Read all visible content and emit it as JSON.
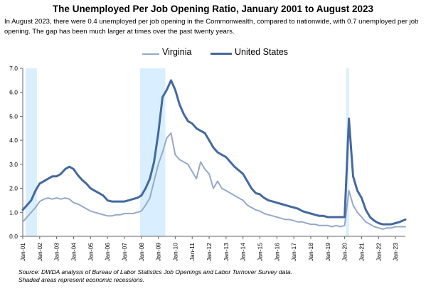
{
  "header": {
    "title": "The Unemployed Per Job Opening Ratio, January 2001 to August 2023",
    "subtitle": "In August 2023, there were 0.4 unemployed per job opening in the Commonwealth, compared to nationwide, with 0.7 unemployed per job opening. The gap has been much larger at times over the past twenty years."
  },
  "footer": {
    "source_line1": "Source: DWDA analysis of Bureau of Labor Statistics Job Openings and Labor Turnover Survey data.",
    "source_line2": "Shaded areas represent economic recessions."
  },
  "chart_data": {
    "type": "line",
    "title": "The Unemployed Per Job Opening Ratio, January 2001 to August 2023",
    "xlabel": "",
    "ylabel": "",
    "ylim": [
      0,
      7
    ],
    "yticks": [
      "0.0",
      "1.0",
      "2.0",
      "3.0",
      "4.0",
      "5.0",
      "6.0",
      "7.0"
    ],
    "xticks": [
      "Jan-01",
      "Jan-02",
      "Jan-03",
      "Jan-04",
      "Jan-05",
      "Jan-06",
      "Jan-07",
      "Jan-08",
      "Jan-09",
      "Jan-10",
      "Jan-11",
      "Jan-12",
      "Jan-13",
      "Jan-14",
      "Jan-15",
      "Jan-16",
      "Jan-17",
      "Jan-18",
      "Jan-19",
      "Jan-20",
      "Jan-21",
      "Jan-22",
      "Jan-23"
    ],
    "xrange": [
      "2001-01",
      "2023-08"
    ],
    "legend_position": "top",
    "grid": false,
    "recessions": [
      {
        "start": "2001-03",
        "end": "2001-11"
      },
      {
        "start": "2007-12",
        "end": "2009-06"
      },
      {
        "start": "2020-02",
        "end": "2020-04"
      }
    ],
    "series": [
      {
        "name": "Virginia",
        "color": "#95a9c9",
        "points": [
          [
            "2001-01",
            0.6
          ],
          [
            "2001-04",
            0.8
          ],
          [
            "2001-07",
            1.0
          ],
          [
            "2001-10",
            1.2
          ],
          [
            "2002-01",
            1.45
          ],
          [
            "2002-04",
            1.55
          ],
          [
            "2002-07",
            1.6
          ],
          [
            "2002-10",
            1.55
          ],
          [
            "2003-01",
            1.6
          ],
          [
            "2003-04",
            1.55
          ],
          [
            "2003-07",
            1.6
          ],
          [
            "2003-10",
            1.55
          ],
          [
            "2004-01",
            1.4
          ],
          [
            "2004-04",
            1.35
          ],
          [
            "2004-07",
            1.25
          ],
          [
            "2004-10",
            1.15
          ],
          [
            "2005-01",
            1.05
          ],
          [
            "2005-04",
            1.0
          ],
          [
            "2005-07",
            0.95
          ],
          [
            "2005-10",
            0.9
          ],
          [
            "2006-01",
            0.85
          ],
          [
            "2006-04",
            0.85
          ],
          [
            "2006-07",
            0.9
          ],
          [
            "2006-10",
            0.9
          ],
          [
            "2007-01",
            0.95
          ],
          [
            "2007-04",
            0.95
          ],
          [
            "2007-07",
            0.95
          ],
          [
            "2007-10",
            1.0
          ],
          [
            "2008-01",
            1.05
          ],
          [
            "2008-04",
            1.3
          ],
          [
            "2008-07",
            1.6
          ],
          [
            "2008-10",
            2.3
          ],
          [
            "2009-01",
            3.0
          ],
          [
            "2009-04",
            3.5
          ],
          [
            "2009-07",
            4.1
          ],
          [
            "2009-10",
            4.3
          ],
          [
            "2010-01",
            3.4
          ],
          [
            "2010-04",
            3.2
          ],
          [
            "2010-07",
            3.1
          ],
          [
            "2010-10",
            3.0
          ],
          [
            "2011-01",
            2.7
          ],
          [
            "2011-04",
            2.4
          ],
          [
            "2011-07",
            3.1
          ],
          [
            "2011-10",
            2.8
          ],
          [
            "2012-01",
            2.6
          ],
          [
            "2012-04",
            2.0
          ],
          [
            "2012-07",
            2.3
          ],
          [
            "2012-10",
            2.0
          ],
          [
            "2013-01",
            1.9
          ],
          [
            "2013-04",
            1.8
          ],
          [
            "2013-07",
            1.7
          ],
          [
            "2013-10",
            1.6
          ],
          [
            "2014-01",
            1.5
          ],
          [
            "2014-04",
            1.3
          ],
          [
            "2014-07",
            1.2
          ],
          [
            "2014-10",
            1.1
          ],
          [
            "2015-01",
            1.05
          ],
          [
            "2015-04",
            0.95
          ],
          [
            "2015-07",
            0.9
          ],
          [
            "2015-10",
            0.85
          ],
          [
            "2016-01",
            0.8
          ],
          [
            "2016-04",
            0.75
          ],
          [
            "2016-07",
            0.7
          ],
          [
            "2016-10",
            0.7
          ],
          [
            "2017-01",
            0.65
          ],
          [
            "2017-04",
            0.6
          ],
          [
            "2017-07",
            0.6
          ],
          [
            "2017-10",
            0.55
          ],
          [
            "2018-01",
            0.5
          ],
          [
            "2018-04",
            0.5
          ],
          [
            "2018-07",
            0.45
          ],
          [
            "2018-10",
            0.45
          ],
          [
            "2019-01",
            0.45
          ],
          [
            "2019-04",
            0.4
          ],
          [
            "2019-07",
            0.45
          ],
          [
            "2019-10",
            0.4
          ],
          [
            "2020-01",
            0.45
          ],
          [
            "2020-04",
            1.9
          ],
          [
            "2020-07",
            1.3
          ],
          [
            "2020-10",
            1.0
          ],
          [
            "2021-01",
            0.8
          ],
          [
            "2021-04",
            0.6
          ],
          [
            "2021-07",
            0.5
          ],
          [
            "2021-10",
            0.4
          ],
          [
            "2022-01",
            0.35
          ],
          [
            "2022-04",
            0.3
          ],
          [
            "2022-07",
            0.35
          ],
          [
            "2022-10",
            0.35
          ],
          [
            "2023-01",
            0.4
          ],
          [
            "2023-04",
            0.4
          ],
          [
            "2023-08",
            0.4
          ]
        ]
      },
      {
        "name": "United States",
        "color": "#44699f",
        "points": [
          [
            "2001-01",
            1.1
          ],
          [
            "2001-04",
            1.3
          ],
          [
            "2001-07",
            1.5
          ],
          [
            "2001-10",
            1.9
          ],
          [
            "2002-01",
            2.2
          ],
          [
            "2002-04",
            2.3
          ],
          [
            "2002-07",
            2.4
          ],
          [
            "2002-10",
            2.5
          ],
          [
            "2003-01",
            2.5
          ],
          [
            "2003-04",
            2.6
          ],
          [
            "2003-07",
            2.8
          ],
          [
            "2003-10",
            2.9
          ],
          [
            "2004-01",
            2.8
          ],
          [
            "2004-04",
            2.55
          ],
          [
            "2004-07",
            2.35
          ],
          [
            "2004-10",
            2.2
          ],
          [
            "2005-01",
            2.0
          ],
          [
            "2005-04",
            1.9
          ],
          [
            "2005-07",
            1.8
          ],
          [
            "2005-10",
            1.7
          ],
          [
            "2006-01",
            1.5
          ],
          [
            "2006-04",
            1.45
          ],
          [
            "2006-07",
            1.45
          ],
          [
            "2006-10",
            1.45
          ],
          [
            "2007-01",
            1.45
          ],
          [
            "2007-04",
            1.5
          ],
          [
            "2007-07",
            1.55
          ],
          [
            "2007-10",
            1.6
          ],
          [
            "2008-01",
            1.7
          ],
          [
            "2008-04",
            2.0
          ],
          [
            "2008-07",
            2.4
          ],
          [
            "2008-10",
            3.1
          ],
          [
            "2009-01",
            4.3
          ],
          [
            "2009-04",
            5.8
          ],
          [
            "2009-07",
            6.1
          ],
          [
            "2009-10",
            6.5
          ],
          [
            "2010-01",
            6.1
          ],
          [
            "2010-04",
            5.5
          ],
          [
            "2010-07",
            5.1
          ],
          [
            "2010-10",
            4.8
          ],
          [
            "2011-01",
            4.7
          ],
          [
            "2011-04",
            4.5
          ],
          [
            "2011-07",
            4.4
          ],
          [
            "2011-10",
            4.3
          ],
          [
            "2012-01",
            4.0
          ],
          [
            "2012-04",
            3.7
          ],
          [
            "2012-07",
            3.5
          ],
          [
            "2012-10",
            3.4
          ],
          [
            "2013-01",
            3.3
          ],
          [
            "2013-04",
            3.1
          ],
          [
            "2013-07",
            2.9
          ],
          [
            "2013-10",
            2.75
          ],
          [
            "2014-01",
            2.6
          ],
          [
            "2014-04",
            2.3
          ],
          [
            "2014-07",
            2.0
          ],
          [
            "2014-10",
            1.8
          ],
          [
            "2015-01",
            1.75
          ],
          [
            "2015-04",
            1.6
          ],
          [
            "2015-07",
            1.5
          ],
          [
            "2015-10",
            1.45
          ],
          [
            "2016-01",
            1.4
          ],
          [
            "2016-04",
            1.35
          ],
          [
            "2016-07",
            1.3
          ],
          [
            "2016-10",
            1.25
          ],
          [
            "2017-01",
            1.2
          ],
          [
            "2017-04",
            1.15
          ],
          [
            "2017-07",
            1.05
          ],
          [
            "2017-10",
            1.0
          ],
          [
            "2018-01",
            0.95
          ],
          [
            "2018-04",
            0.9
          ],
          [
            "2018-07",
            0.85
          ],
          [
            "2018-10",
            0.85
          ],
          [
            "2019-01",
            0.8
          ],
          [
            "2019-04",
            0.8
          ],
          [
            "2019-07",
            0.8
          ],
          [
            "2019-10",
            0.8
          ],
          [
            "2020-01",
            0.8
          ],
          [
            "2020-04",
            4.9
          ],
          [
            "2020-07",
            2.5
          ],
          [
            "2020-10",
            1.9
          ],
          [
            "2021-01",
            1.6
          ],
          [
            "2021-04",
            1.1
          ],
          [
            "2021-07",
            0.8
          ],
          [
            "2021-10",
            0.65
          ],
          [
            "2022-01",
            0.55
          ],
          [
            "2022-04",
            0.5
          ],
          [
            "2022-07",
            0.5
          ],
          [
            "2022-10",
            0.5
          ],
          [
            "2023-01",
            0.55
          ],
          [
            "2023-04",
            0.6
          ],
          [
            "2023-08",
            0.7
          ]
        ]
      }
    ]
  }
}
